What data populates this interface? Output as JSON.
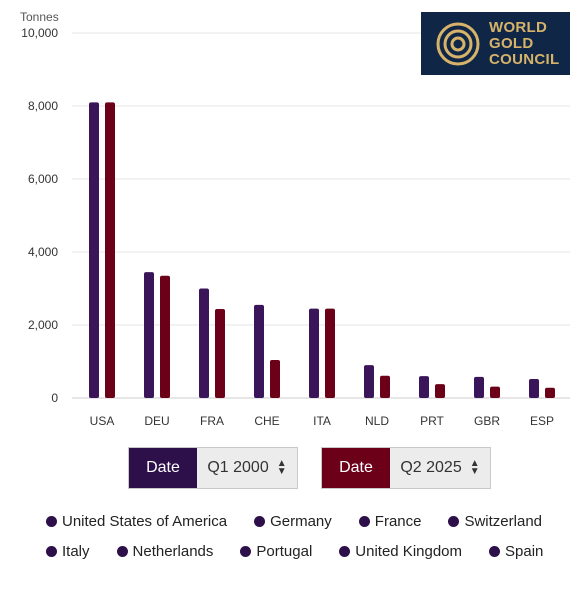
{
  "logo": {
    "line1": "WORLD",
    "line2": "GOLD",
    "line3": "COUNCIL"
  },
  "controls": [
    {
      "label": "Date",
      "value": "Q1 2000",
      "color": "#2d0f49"
    },
    {
      "label": "Date",
      "value": "Q2 2025",
      "color": "#6b0018"
    }
  ],
  "legend": [
    "United States of America",
    "Germany",
    "France",
    "Switzerland",
    "Italy",
    "Netherlands",
    "Portugal",
    "United Kingdom",
    "Spain"
  ],
  "chart_data": {
    "type": "bar",
    "ylabel": "Tonnes",
    "ylim": [
      0,
      10000
    ],
    "yticks": [
      0,
      2000,
      4000,
      6000,
      8000,
      10000
    ],
    "ytick_labels": [
      "0",
      "2,000",
      "4,000",
      "6,000",
      "8,000",
      "10,000"
    ],
    "categories": [
      "USA",
      "DEU",
      "FRA",
      "CHE",
      "ITA",
      "NLD",
      "PRT",
      "GBR",
      "ESP"
    ],
    "series": [
      {
        "name": "Q1 2000",
        "color": "#3a1559",
        "values": [
          8100,
          3450,
          3000,
          2550,
          2450,
          900,
          600,
          580,
          520
        ]
      },
      {
        "name": "Q2 2025",
        "color": "#6b0018",
        "values": [
          8100,
          3350,
          2440,
          1040,
          2450,
          610,
          380,
          310,
          280
        ]
      }
    ],
    "grid": true
  }
}
